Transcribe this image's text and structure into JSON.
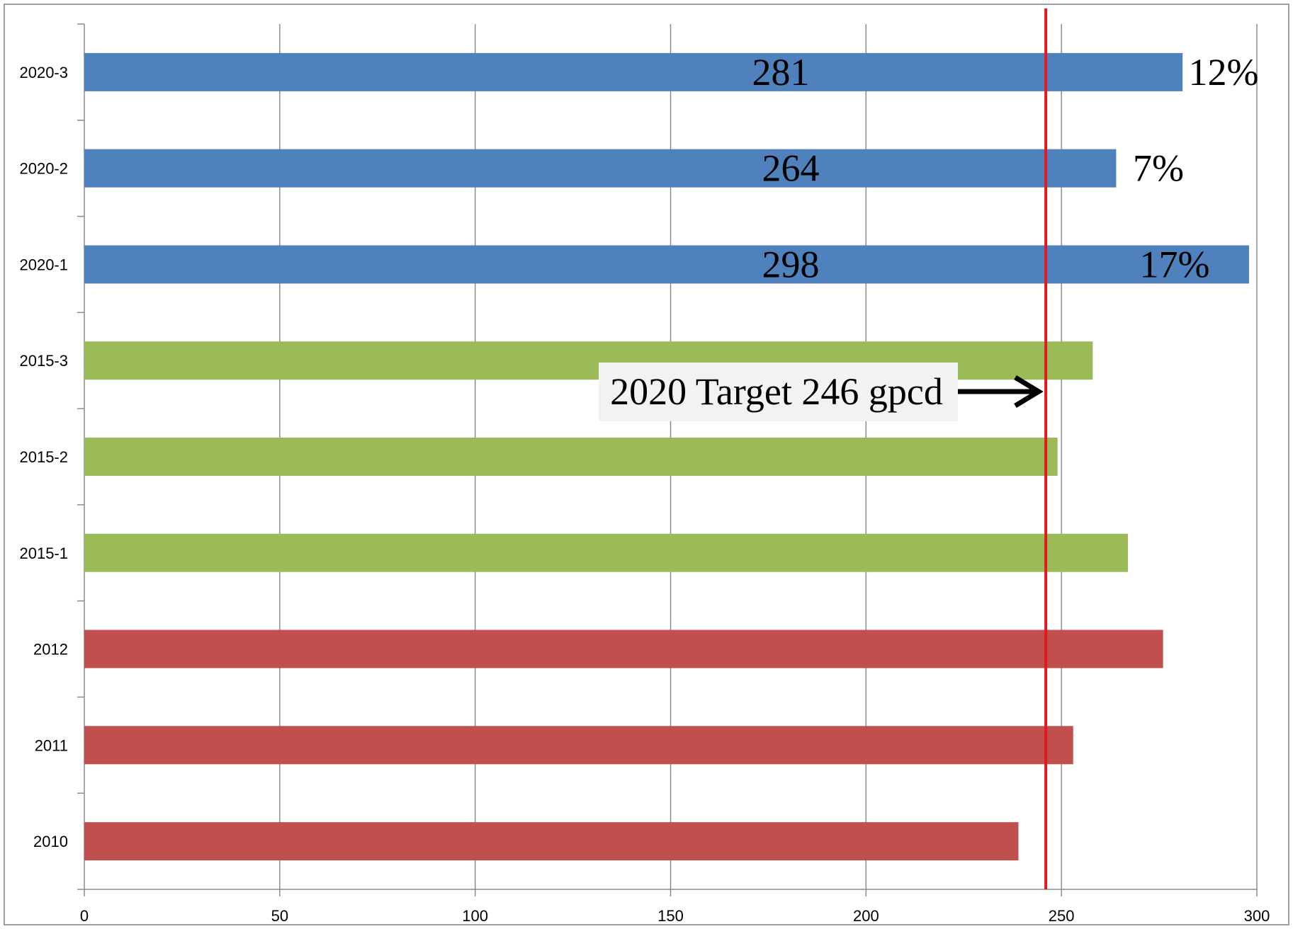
{
  "chart_data": {
    "type": "bar",
    "orientation": "horizontal",
    "categories": [
      "2020-3",
      "2020-2",
      "2020-1",
      "2015-3",
      "2015-2",
      "2015-1",
      "2012",
      "2011",
      "2010"
    ],
    "values": [
      281,
      264,
      298,
      258,
      249,
      267,
      276,
      253,
      239
    ],
    "bar_colors": [
      "#4F81BD",
      "#4F81BD",
      "#4F81BD",
      "#9BBB59",
      "#9BBB59",
      "#9BBB59",
      "#C0504D",
      "#C0504D",
      "#C0504D"
    ],
    "value_labels": [
      "281",
      "264",
      "298",
      "",
      "",
      "",
      "",
      "",
      ""
    ],
    "percent_labels": [
      "12%",
      "7%",
      "17%",
      "",
      "",
      "",
      "",
      "",
      ""
    ],
    "xlim": [
      0,
      300
    ],
    "x_ticks": [
      0,
      50,
      100,
      150,
      200,
      250,
      300
    ],
    "grid": "vertical",
    "title": "",
    "xlabel": "",
    "ylabel": "",
    "reference_line": {
      "value": 246,
      "color": "#E31A1C"
    },
    "annotation": {
      "text": "2020 Target 246 gpcd",
      "points_to": 246
    }
  }
}
